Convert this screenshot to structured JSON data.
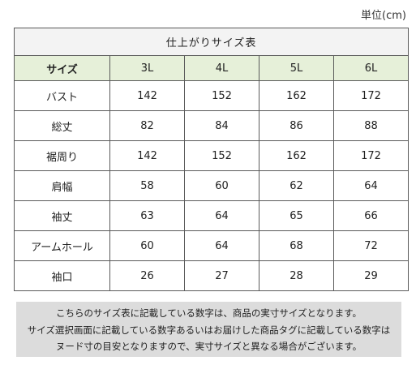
{
  "unit_label": "単位(cm)",
  "table": {
    "title": "仕上がりサイズ表",
    "header_label": "サイズ",
    "sizes": [
      "3L",
      "4L",
      "5L",
      "6L"
    ],
    "rows": [
      {
        "label": "バスト",
        "values": [
          "142",
          "152",
          "162",
          "172"
        ]
      },
      {
        "label": "総丈",
        "values": [
          "82",
          "84",
          "86",
          "88"
        ]
      },
      {
        "label": "裾周り",
        "values": [
          "142",
          "152",
          "162",
          "172"
        ]
      },
      {
        "label": "肩幅",
        "values": [
          "58",
          "60",
          "62",
          "64"
        ]
      },
      {
        "label": "袖丈",
        "values": [
          "63",
          "64",
          "65",
          "66"
        ]
      },
      {
        "label": "アームホール",
        "values": [
          "60",
          "64",
          "68",
          "72"
        ]
      },
      {
        "label": "袖口",
        "values": [
          "26",
          "27",
          "28",
          "29"
        ]
      }
    ]
  },
  "note": {
    "lines": [
      "こちらのサイズ表に記載している数字は、商品の実寸サイズとなります。",
      "サイズ選択画面に記載している数字あるいはお届けした商品タグに記載している数字は",
      "ヌード寸の目安となりますので、実寸サイズと異なる場合がございます。"
    ]
  }
}
